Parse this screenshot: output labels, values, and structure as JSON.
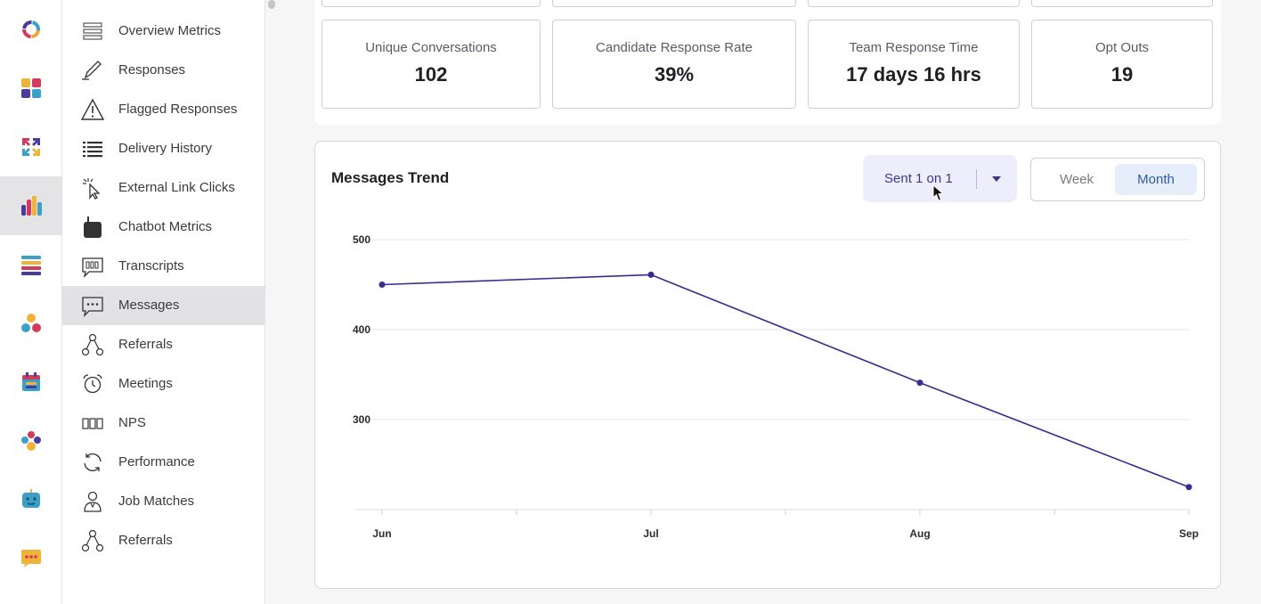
{
  "rail": {
    "items": [
      {
        "name": "home-logo-icon"
      },
      {
        "name": "dashboard-tiles-icon"
      },
      {
        "name": "arrows-shuffle-icon"
      },
      {
        "name": "analytics-bar-icon",
        "active": true
      },
      {
        "name": "list-stack-icon"
      },
      {
        "name": "people-circles-icon"
      },
      {
        "name": "calendar-icon"
      },
      {
        "name": "team-people-icon"
      },
      {
        "name": "chatbot-face-icon"
      },
      {
        "name": "chat-bubble-icon"
      }
    ]
  },
  "sidebar": {
    "items": [
      {
        "label": "Overview Metrics",
        "icon": "overview-icon"
      },
      {
        "label": "Responses",
        "icon": "pencil-icon"
      },
      {
        "label": "Flagged Responses",
        "icon": "warning-icon"
      },
      {
        "label": "Delivery History",
        "icon": "list-icon"
      },
      {
        "label": "External Link Clicks",
        "icon": "pointer-click-icon"
      },
      {
        "label": "Chatbot Metrics",
        "icon": "chatbot-icon"
      },
      {
        "label": "Transcripts",
        "icon": "transcript-icon"
      },
      {
        "label": "Messages",
        "icon": "message-icon",
        "active": true
      },
      {
        "label": "Referrals",
        "icon": "referral-network-icon"
      },
      {
        "label": "Meetings",
        "icon": "alarm-clock-icon"
      },
      {
        "label": "NPS",
        "icon": "nps-boxes-icon"
      },
      {
        "label": "Performance",
        "icon": "refresh-icon"
      },
      {
        "label": "Job Matches",
        "icon": "person-icon"
      },
      {
        "label": "Referrals",
        "icon": "referral-network-icon"
      }
    ]
  },
  "stats": [
    {
      "label": "Unique Conversations",
      "value": "102"
    },
    {
      "label": "Candidate Response Rate",
      "value": "39%"
    },
    {
      "label": "Team Response Time",
      "value": "17 days 16 hrs"
    },
    {
      "label": "Opt Outs",
      "value": "19"
    }
  ],
  "trend": {
    "title": "Messages Trend",
    "dropdown_value": "Sent 1 on 1",
    "toggle": {
      "week": "Week",
      "month": "Month",
      "selected": "Month"
    }
  },
  "colors": {
    "line": "#3b2a8f",
    "accent": "#2e5aa8"
  },
  "chart_data": {
    "type": "line",
    "title": "Messages Trend",
    "categories": [
      "Jun",
      "Jul",
      "Aug",
      "Sep"
    ],
    "series": [
      {
        "values": [
          450,
          461,
          341,
          225
        ]
      }
    ],
    "yticks": [
      "500",
      "400",
      "300"
    ],
    "ylim": [
      200,
      500
    ],
    "grid": true
  }
}
